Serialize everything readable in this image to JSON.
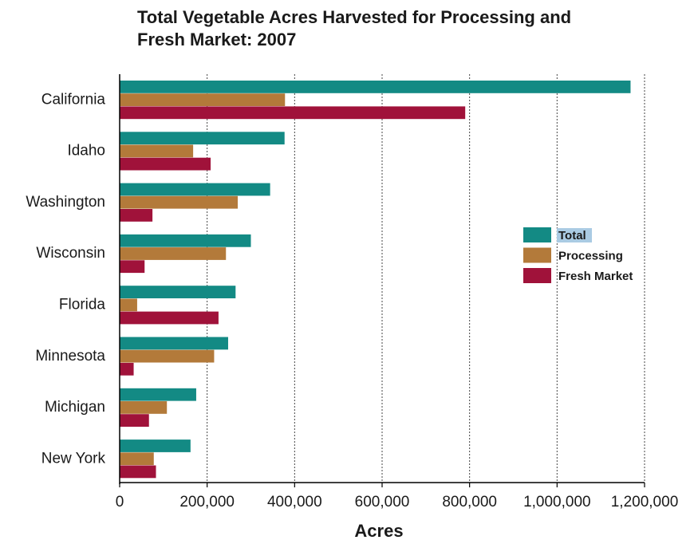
{
  "chart_data": {
    "type": "bar",
    "orientation": "horizontal",
    "title_lines": [
      "Total Vegetable Acres Harvested for Processing and",
      "Fresh Market: 2007"
    ],
    "xlabel": "Acres",
    "ylabel": "",
    "xlim": [
      0,
      1200000
    ],
    "xticks": [
      0,
      200000,
      400000,
      600000,
      800000,
      1000000,
      1200000
    ],
    "xtick_labels": [
      "0",
      "200,000",
      "400,000",
      "600,000",
      "800,000",
      "1,000,000",
      "1,200,000"
    ],
    "grid": "vertical-dotted",
    "legend_position": "right",
    "categories": [
      "California",
      "Idaho",
      "Washington",
      "Wisconsin",
      "Florida",
      "Minnesota",
      "Michigan",
      "New York"
    ],
    "series": [
      {
        "name": "Total",
        "color": "#138a84",
        "values": [
          1168000,
          377000,
          344000,
          300000,
          265000,
          248000,
          175000,
          162000
        ]
      },
      {
        "name": "Processing",
        "color": "#b37a3a",
        "values": [
          378000,
          168000,
          270000,
          243000,
          40000,
          216000,
          108000,
          78000
        ]
      },
      {
        "name": "Fresh Market",
        "color": "#a0123a",
        "values": [
          790000,
          208000,
          75000,
          57000,
          226000,
          32000,
          67000,
          83000
        ]
      }
    ],
    "legend_highlight": "Total",
    "legend_highlight_color": "#aacbe3"
  }
}
